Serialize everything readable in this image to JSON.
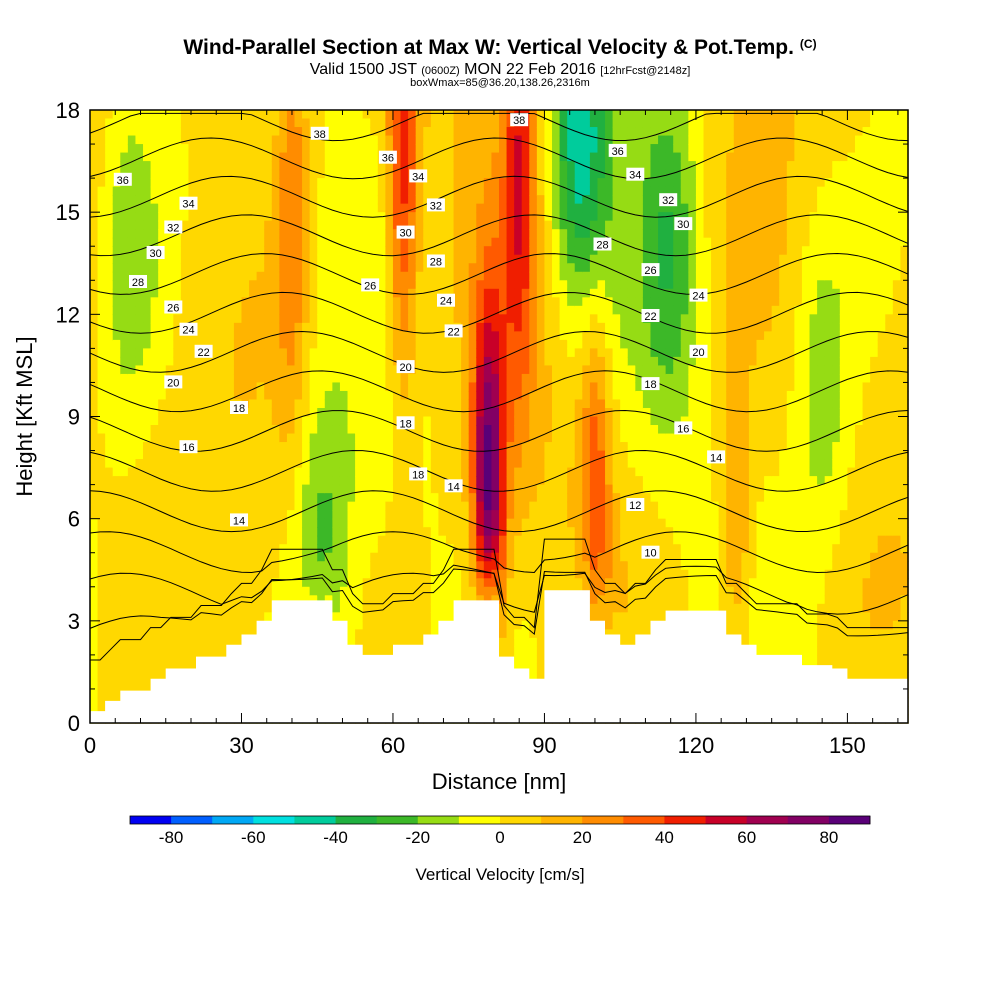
{
  "title": {
    "main": "Wind-Parallel Section at Max W: Vertical Velocity & Pot.Temp.",
    "suffix": "(C)",
    "valid_prefix": "Valid 1500 JST",
    "valid_small1": "(0600Z)",
    "valid_mid": "MON 22 Feb 2016",
    "valid_small2": "[12hrFcst@2148z]",
    "box": "boxWmax=85@36.20,138.26,2316m"
  },
  "chart_data": {
    "type": "heatmap",
    "xlabel": "Distance [nm]",
    "ylabel": "Height [Kft MSL]",
    "xlim": [
      0,
      162
    ],
    "ylim": [
      0,
      18
    ],
    "x_ticks": [
      0,
      30,
      60,
      90,
      120,
      150
    ],
    "y_ticks": [
      0,
      3,
      6,
      9,
      12,
      15,
      18
    ],
    "colorbar": {
      "label": "Vertical Velocity [cm/s]",
      "min": -90,
      "max": 90,
      "step": 10,
      "tick_labels": [
        "-80",
        "-60",
        "-40",
        "-20",
        "0",
        "20",
        "40",
        "60",
        "80"
      ],
      "colors": [
        "#0000f2",
        "#005fff",
        "#00a8f5",
        "#00e0e0",
        "#00cc9c",
        "#20b040",
        "#3cb828",
        "#96dc14",
        "#ffff00",
        "#ffd800",
        "#ffb400",
        "#ff8c00",
        "#ff5a00",
        "#f01e00",
        "#c80028",
        "#a00050",
        "#820064",
        "#5a0078"
      ]
    },
    "updrafts": [
      {
        "x": 79,
        "y": 6.5,
        "peak_cm_s": 85
      },
      {
        "x": 62,
        "y": 16.5,
        "peak_cm_s": 45
      },
      {
        "x": 85,
        "y": 17,
        "peak_cm_s": 40
      },
      {
        "x": 100,
        "y": 7,
        "peak_cm_s": 35
      },
      {
        "x": 40,
        "y": 15,
        "peak_cm_s": 25
      },
      {
        "x": 128,
        "y": 4.5,
        "peak_cm_s": 25
      }
    ],
    "downdrafts": [
      {
        "x": 97,
        "y": 17.2,
        "min_cm_s": -45
      },
      {
        "x": 46,
        "y": 4,
        "min_cm_s": -30
      },
      {
        "x": 115,
        "y": 14,
        "min_cm_s": -25
      },
      {
        "x": 8,
        "y": 14,
        "min_cm_s": -20
      },
      {
        "x": 145,
        "y": 10,
        "min_cm_s": -20
      }
    ],
    "terrain_kft": [
      [
        0,
        0.35
      ],
      [
        3,
        0.65
      ],
      [
        6,
        0.95
      ],
      [
        12,
        1.3
      ],
      [
        15,
        1.6
      ],
      [
        21,
        1.95
      ],
      [
        27,
        2.3
      ],
      [
        30,
        2.6
      ],
      [
        33,
        3.0
      ],
      [
        36,
        3.6
      ],
      [
        45,
        3.6
      ],
      [
        48,
        3.0
      ],
      [
        51,
        2.3
      ],
      [
        54,
        2.0
      ],
      [
        57,
        2.0
      ],
      [
        60,
        2.3
      ],
      [
        66,
        2.6
      ],
      [
        69,
        3.0
      ],
      [
        72,
        3.6
      ],
      [
        78,
        3.6
      ],
      [
        81,
        1.95
      ],
      [
        84,
        1.6
      ],
      [
        87,
        1.3
      ],
      [
        90,
        3.9
      ],
      [
        96,
        3.9
      ],
      [
        99,
        3.0
      ],
      [
        102,
        2.6
      ],
      [
        105,
        2.3
      ],
      [
        108,
        2.6
      ],
      [
        111,
        3.0
      ],
      [
        114,
        3.3
      ],
      [
        123,
        3.3
      ],
      [
        126,
        2.6
      ],
      [
        129,
        2.3
      ],
      [
        132,
        2.0
      ],
      [
        138,
        2.0
      ],
      [
        141,
        1.7
      ],
      [
        147,
        1.6
      ],
      [
        150,
        1.3
      ],
      [
        162,
        1.3
      ]
    ],
    "theta_contours": {
      "unit": "C",
      "levels": [
        10,
        12,
        14,
        16,
        18,
        20,
        22,
        24,
        26,
        28,
        30,
        32,
        34,
        36,
        38
      ],
      "labels": [
        {
          "text": "36",
          "x": 6.5,
          "y": 15.95
        },
        {
          "text": "34",
          "x": 19.5,
          "y": 15.25
        },
        {
          "text": "32",
          "x": 16.5,
          "y": 14.55
        },
        {
          "text": "30",
          "x": 13,
          "y": 13.8
        },
        {
          "text": "28",
          "x": 9.5,
          "y": 12.95
        },
        {
          "text": "26",
          "x": 16.5,
          "y": 12.2
        },
        {
          "text": "24",
          "x": 19.5,
          "y": 11.55
        },
        {
          "text": "22",
          "x": 22.5,
          "y": 10.9
        },
        {
          "text": "20",
          "x": 16.5,
          "y": 10.0
        },
        {
          "text": "18",
          "x": 29.5,
          "y": 9.25
        },
        {
          "text": "16",
          "x": 19.5,
          "y": 8.1
        },
        {
          "text": "14",
          "x": 29.5,
          "y": 5.95
        },
        {
          "text": "38",
          "x": 45.5,
          "y": 17.3
        },
        {
          "text": "36",
          "x": 59,
          "y": 16.6
        },
        {
          "text": "34",
          "x": 65,
          "y": 16.05
        },
        {
          "text": "32",
          "x": 68.5,
          "y": 15.2
        },
        {
          "text": "30",
          "x": 62.5,
          "y": 14.4
        },
        {
          "text": "28",
          "x": 68.5,
          "y": 13.55
        },
        {
          "text": "26",
          "x": 55.5,
          "y": 12.85
        },
        {
          "text": "24",
          "x": 70.5,
          "y": 12.4
        },
        {
          "text": "22",
          "x": 72,
          "y": 11.5
        },
        {
          "text": "20",
          "x": 62.5,
          "y": 10.45
        },
        {
          "text": "18",
          "x": 62.5,
          "y": 8.8
        },
        {
          "text": "18",
          "x": 65,
          "y": 7.3
        },
        {
          "text": "14",
          "x": 72,
          "y": 6.95
        },
        {
          "text": "38",
          "x": 85,
          "y": 17.7
        },
        {
          "text": "36",
          "x": 104.5,
          "y": 16.8
        },
        {
          "text": "34",
          "x": 108,
          "y": 16.1
        },
        {
          "text": "32",
          "x": 114.5,
          "y": 15.35
        },
        {
          "text": "30",
          "x": 117.5,
          "y": 14.65
        },
        {
          "text": "28",
          "x": 101.5,
          "y": 14.05
        },
        {
          "text": "26",
          "x": 111,
          "y": 13.3
        },
        {
          "text": "24",
          "x": 120.5,
          "y": 12.55
        },
        {
          "text": "22",
          "x": 111,
          "y": 11.95
        },
        {
          "text": "20",
          "x": 120.5,
          "y": 10.9
        },
        {
          "text": "18",
          "x": 111,
          "y": 9.95
        },
        {
          "text": "16",
          "x": 117.5,
          "y": 8.65
        },
        {
          "text": "14",
          "x": 124,
          "y": 7.8
        },
        {
          "text": "12",
          "x": 108,
          "y": 6.4
        },
        {
          "text": "10",
          "x": 111,
          "y": 5.0
        }
      ]
    }
  }
}
